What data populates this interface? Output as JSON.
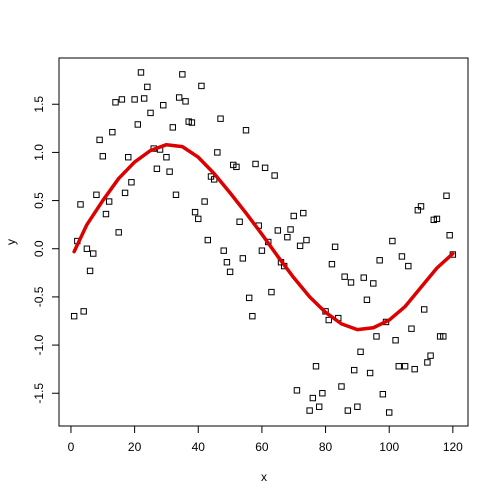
{
  "chart_data": {
    "type": "scatter",
    "x_label": "x",
    "y_label": "y",
    "xlim": [
      -3.76,
      124.76
    ],
    "ylim": [
      -1.84,
      1.98
    ],
    "xticks": [
      0,
      20,
      40,
      60,
      80,
      100,
      120
    ],
    "yticks": [
      -1.5,
      {
        "value": -1,
        "label": "-1.0"
      },
      -0.5,
      {
        "value": 0,
        "label": "0.0"
      },
      0.5,
      {
        "value": 1,
        "label": "1.0"
      },
      1.5
    ],
    "points": {
      "color": "#000000",
      "x": [
        1,
        2,
        3,
        4,
        5,
        6,
        7,
        8,
        9,
        10,
        11,
        12,
        13,
        14,
        15,
        16,
        17,
        18,
        19,
        20,
        21,
        22,
        23,
        24,
        25,
        26,
        27,
        28,
        29,
        30,
        31,
        32,
        33,
        34,
        35,
        36,
        37,
        38,
        39,
        40,
        41,
        42,
        43,
        44,
        45,
        46,
        47,
        48,
        49,
        50,
        51,
        52,
        53,
        54,
        55,
        56,
        57,
        58,
        59,
        60,
        61,
        62,
        63,
        64,
        65,
        66,
        67,
        68,
        69,
        70,
        71,
        72,
        73,
        74,
        75,
        76,
        77,
        78,
        79,
        80,
        81,
        82,
        83,
        84,
        85,
        86,
        87,
        88,
        89,
        90,
        91,
        92,
        93,
        94,
        95,
        96,
        97,
        98,
        99,
        100,
        101,
        102,
        103,
        104,
        105,
        106,
        107,
        108,
        109,
        110,
        111,
        112,
        113,
        114,
        115,
        116,
        117,
        118,
        119,
        120
      ],
      "values": [
        -0.7,
        0.08,
        0.46,
        -0.65,
        0.0,
        -0.23,
        -0.05,
        0.56,
        1.13,
        0.96,
        0.36,
        0.49,
        1.21,
        1.52,
        0.17,
        1.55,
        0.58,
        0.95,
        0.69,
        1.55,
        1.29,
        1.83,
        1.56,
        1.68,
        1.41,
        1.04,
        0.83,
        1.03,
        1.49,
        0.95,
        0.8,
        1.26,
        0.56,
        1.57,
        1.81,
        1.53,
        1.32,
        1.31,
        0.38,
        0.31,
        1.69,
        0.49,
        0.09,
        0.75,
        0.72,
        1.0,
        1.35,
        -0.02,
        -0.14,
        -0.24,
        0.87,
        0.85,
        0.28,
        -0.1,
        1.23,
        -0.51,
        -0.7,
        0.88,
        0.24,
        -0.02,
        0.84,
        0.07,
        -0.45,
        0.76,
        0.19,
        -0.14,
        -0.18,
        0.12,
        0.2,
        0.34,
        -1.47,
        0.03,
        0.37,
        0.09,
        -1.68,
        -1.55,
        -1.22,
        -1.64,
        -1.5,
        -0.65,
        -0.74,
        -0.16,
        0.02,
        -0.72,
        -1.43,
        -0.29,
        -1.68,
        -0.35,
        -1.26,
        -1.64,
        -1.07,
        -0.3,
        -0.53,
        -1.29,
        -0.36,
        -0.91,
        -0.12,
        -1.51,
        -0.76,
        -1.7,
        0.08,
        -0.95,
        -1.22,
        -0.08,
        -1.22,
        -0.18,
        -0.83,
        -1.25,
        0.4,
        0.44,
        -0.63,
        -1.18,
        -1.11,
        0.3,
        0.31,
        -0.91,
        -0.91,
        0.55,
        0.14,
        -0.06
      ]
    },
    "line": {
      "color": "#dd0000",
      "x": [
        1,
        5,
        10,
        15,
        20,
        25,
        30,
        35,
        40,
        45,
        50,
        55,
        60,
        65,
        70,
        75,
        80,
        85,
        90,
        95,
        100,
        105,
        110,
        115,
        120
      ],
      "values": [
        -0.03,
        0.25,
        0.5,
        0.73,
        0.9,
        1.02,
        1.08,
        1.06,
        0.95,
        0.78,
        0.58,
        0.37,
        0.15,
        -0.08,
        -0.3,
        -0.5,
        -0.66,
        -0.78,
        -0.84,
        -0.82,
        -0.74,
        -0.6,
        -0.4,
        -0.2,
        -0.05
      ]
    }
  }
}
